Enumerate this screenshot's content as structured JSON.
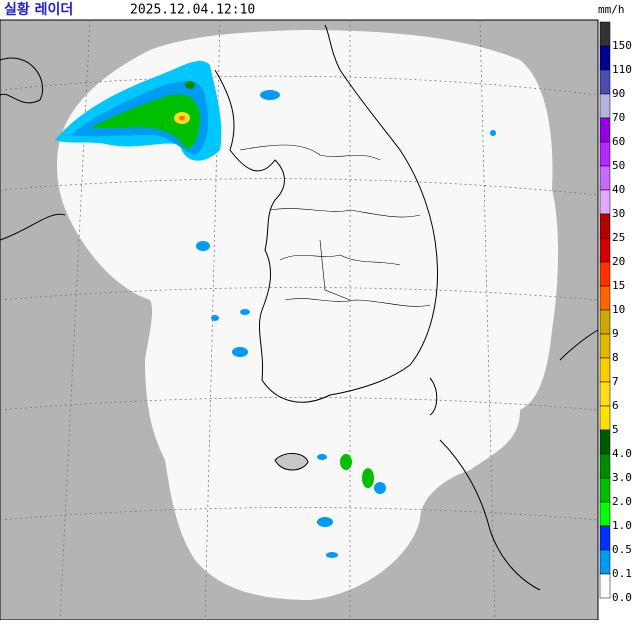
{
  "header": {
    "title": "실황 레이더",
    "timestamp": "2025.12.04.12:10",
    "unit": "mm/h"
  },
  "legend": {
    "items": [
      {
        "label": "150",
        "color": "#333333"
      },
      {
        "label": "110",
        "color": "#000390"
      },
      {
        "label": "90",
        "color": "#4c4eb1"
      },
      {
        "label": "70",
        "color": "#b3b4de"
      },
      {
        "label": "60",
        "color": "#9300e4"
      },
      {
        "label": "50",
        "color": "#b329ff"
      },
      {
        "label": "40",
        "color": "#c969ff"
      },
      {
        "label": "30",
        "color": "#e0a9ff"
      },
      {
        "label": "25",
        "color": "#b40000"
      },
      {
        "label": "20",
        "color": "#d20000"
      },
      {
        "label": "15",
        "color": "#ff3200"
      },
      {
        "label": "10",
        "color": "#ff6600"
      },
      {
        "label": "9",
        "color": "#ccaa00"
      },
      {
        "label": "8",
        "color": "#e0b900"
      },
      {
        "label": "7",
        "color": "#f9cd00"
      },
      {
        "label": "6",
        "color": "#ffdc1f"
      },
      {
        "label": "5",
        "color": "#ffe100"
      },
      {
        "label": "4.0",
        "color": "#005a00"
      },
      {
        "label": "3.0",
        "color": "#008c00"
      },
      {
        "label": "2.0",
        "color": "#00be00"
      },
      {
        "label": "1.0",
        "color": "#00ff00"
      },
      {
        "label": "0.5",
        "color": "#0033f5"
      },
      {
        "label": "0.1",
        "color": "#009bf5"
      },
      {
        "label": "0.0",
        "color": "#ffffff"
      }
    ]
  }
}
